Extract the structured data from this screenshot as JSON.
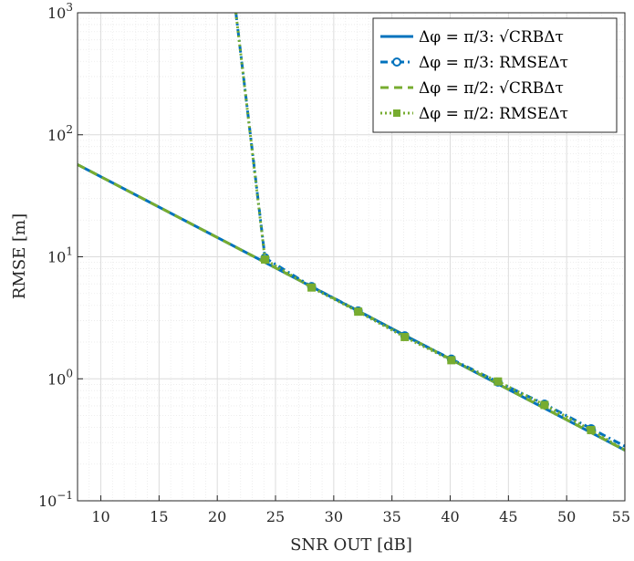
{
  "chart_data": {
    "type": "line",
    "xlabel": "SNR OUT [dB]",
    "ylabel": "RMSE [m]",
    "xlim": [
      8,
      55
    ],
    "ylim": [
      0.1,
      1000
    ],
    "yscale": "log",
    "grid": "major and minor",
    "legend_position": "top-right",
    "x_ticks": [
      "10",
      "15",
      "20",
      "25",
      "30",
      "35",
      "40",
      "45",
      "50",
      "55"
    ],
    "y_ticks": [
      {
        "base": "10",
        "exp": "−1"
      },
      {
        "base": "10",
        "exp": "0"
      },
      {
        "base": "10",
        "exp": "1"
      },
      {
        "base": "10",
        "exp": "2"
      },
      {
        "base": "10",
        "exp": "3"
      }
    ],
    "series": [
      {
        "name": "Δφ = π/3: √CRBΔτ",
        "color": "#0072BD",
        "style": "solid",
        "marker": "none",
        "x": [
          8,
          55
        ],
        "y": [
          57,
          0.26
        ]
      },
      {
        "name": "Δφ = π/3: RMSEΔτ",
        "color": "#0072BD",
        "style": "dash-dot",
        "marker": "circle",
        "x": [
          21.6,
          24.1,
          28.1,
          32.1,
          36.1,
          40.1,
          44.1,
          48.1,
          52.1,
          55
        ],
        "y": [
          1000,
          9.8,
          5.7,
          3.6,
          2.25,
          1.45,
          0.94,
          0.62,
          0.39,
          0.28
        ]
      },
      {
        "name": "Δφ = π/2: √CRBΔτ",
        "color": "#77AC30",
        "style": "dashed",
        "marker": "none",
        "x": [
          8,
          55
        ],
        "y": [
          57,
          0.26
        ]
      },
      {
        "name": "Δφ = π/2: RMSEΔτ",
        "color": "#77AC30",
        "style": "dotted",
        "marker": "square",
        "x": [
          21.6,
          24.1,
          28.1,
          32.1,
          36.1,
          40.1,
          44.1,
          48.1,
          52.1,
          55
        ],
        "y": [
          1000,
          9.5,
          5.6,
          3.55,
          2.2,
          1.42,
          0.95,
          0.61,
          0.38,
          0.26
        ]
      }
    ]
  }
}
